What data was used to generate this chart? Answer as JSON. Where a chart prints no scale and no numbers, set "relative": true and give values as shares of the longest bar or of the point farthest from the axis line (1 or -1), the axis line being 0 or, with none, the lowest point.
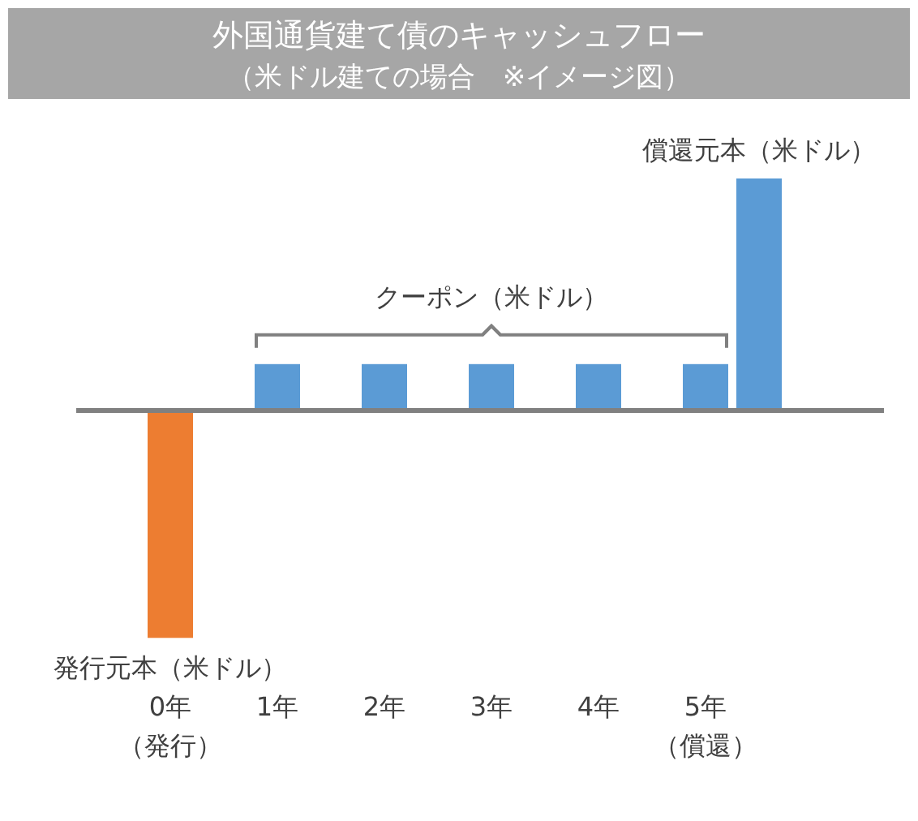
{
  "chart_data": {
    "type": "bar",
    "title": "外国通貨建て債のキャッシュフロー",
    "subtitle": "（米ドル建ての場合　※イメージ図）",
    "relative": true,
    "legend": false,
    "categories": [
      "0年（発行）",
      "1年",
      "2年",
      "3年",
      "4年",
      "5年（償還）"
    ],
    "series": [
      {
        "name": "発行元本（米ドル）",
        "color": "#ed7d31",
        "values": [
          -0.98,
          null,
          null,
          null,
          null,
          null
        ]
      },
      {
        "name": "クーポン（米ドル）",
        "color": "#5b9bd5",
        "values": [
          null,
          0.2,
          0.2,
          0.2,
          0.2,
          0.2
        ]
      },
      {
        "name": "償還元本（米ドル）",
        "color": "#5b9bd5",
        "values": [
          null,
          null,
          null,
          null,
          null,
          1
        ]
      }
    ]
  }
}
